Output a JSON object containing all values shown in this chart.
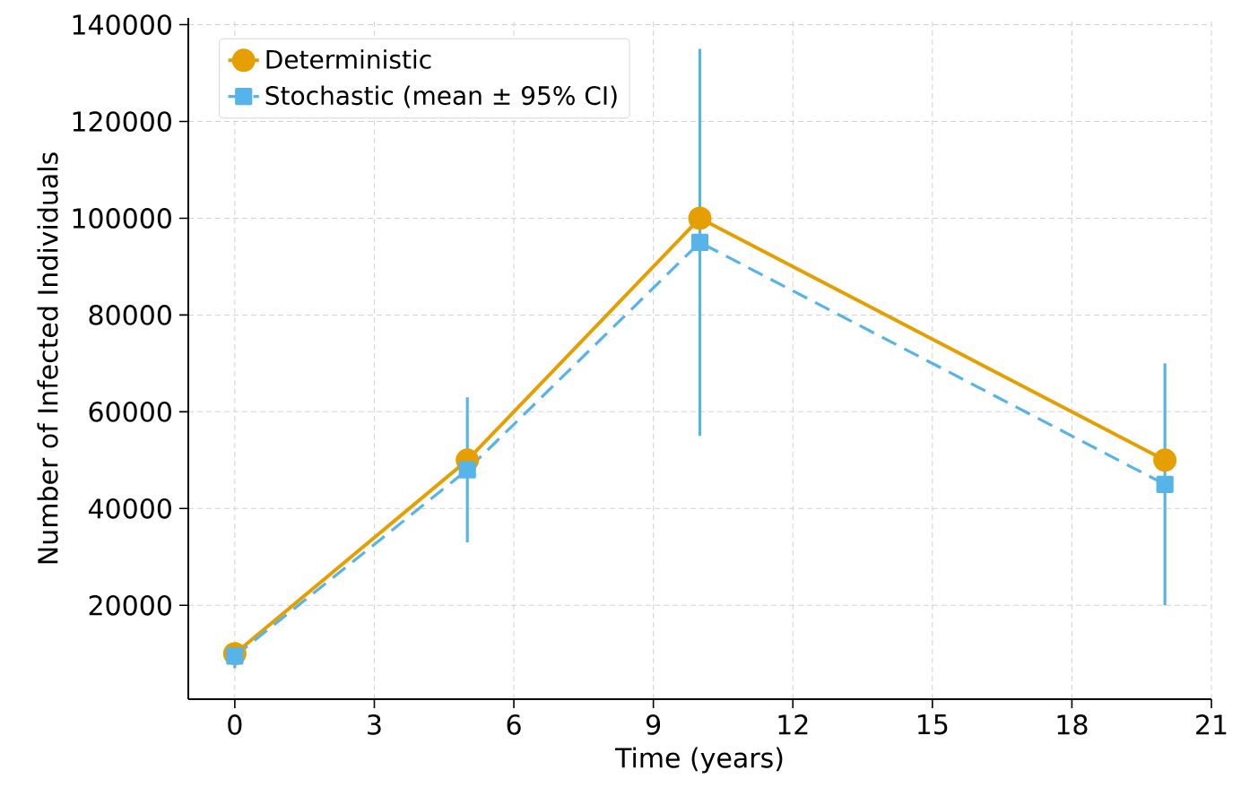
{
  "chart_data": {
    "type": "line",
    "xlabel": "Time (years)",
    "ylabel": "Number of Infected Individuals",
    "xlim": [
      -1,
      21
    ],
    "ylim": [
      600,
      141400
    ],
    "xticks": [
      0,
      3,
      6,
      9,
      12,
      15,
      18,
      21
    ],
    "yticks": [
      20000,
      40000,
      60000,
      80000,
      100000,
      120000,
      140000
    ],
    "grid": true,
    "legend": "top left",
    "series": [
      {
        "name": "Deterministic",
        "color": "#e69f00",
        "marker": "circle",
        "line_style": "solid",
        "x": [
          0,
          5,
          10,
          20
        ],
        "values": [
          10000,
          50000,
          100000,
          50000
        ]
      },
      {
        "name": "Stochastic (mean ± 95% CI)",
        "color": "#56b4e9",
        "marker": "square",
        "line_style": "dashed",
        "x": [
          0,
          5,
          10,
          20
        ],
        "values": [
          9500,
          48000,
          95000,
          45000
        ],
        "errors": [
          [
            7000,
            12000
          ],
          [
            33000,
            63000
          ],
          [
            55000,
            135000
          ],
          [
            20000,
            70000
          ]
        ]
      }
    ]
  }
}
